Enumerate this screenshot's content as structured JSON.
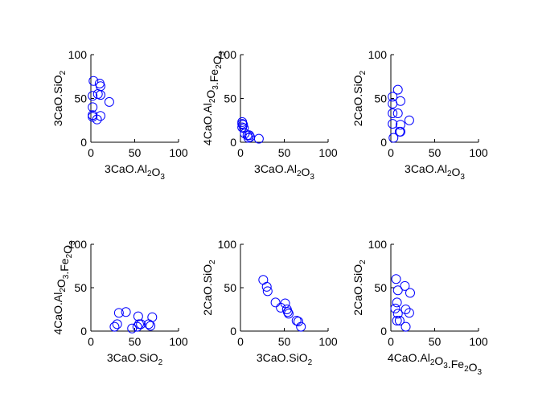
{
  "figure": {
    "background": "#ffffff"
  },
  "chart_data": [
    {
      "type": "scatter",
      "title": "",
      "xlabel": "3CaO.Al2O3",
      "ylabel": "3CaO.SiO2",
      "xlabel_parts": [
        {
          "text": "3CaO.Al"
        },
        {
          "text": "2",
          "sub": true
        },
        {
          "text": "O"
        },
        {
          "text": "3",
          "sub": true
        }
      ],
      "ylabel_parts": [
        {
          "text": "3CaO.SiO"
        },
        {
          "text": "2",
          "sub": true
        }
      ],
      "xlim": [
        0,
        100
      ],
      "ylim": [
        0,
        100
      ],
      "xticks": [
        0,
        50,
        100
      ],
      "yticks": [
        0,
        50,
        100
      ],
      "color": "#0000ff",
      "marker": "circle",
      "x": [
        3,
        10,
        11,
        8,
        11,
        2,
        21,
        2,
        2,
        2,
        7,
        11
      ],
      "y": [
        70,
        67,
        64,
        55,
        54,
        53,
        46,
        40,
        31,
        29,
        26,
        30
      ]
    },
    {
      "type": "scatter",
      "title": "",
      "xlabel": "3CaO.Al2O3",
      "ylabel": "4CaO.Al2O3.Fe2O3",
      "xlabel_parts": [
        {
          "text": "3CaO.Al"
        },
        {
          "text": "2",
          "sub": true
        },
        {
          "text": "O"
        },
        {
          "text": "3",
          "sub": true
        }
      ],
      "ylabel_parts": [
        {
          "text": "4CaO.Al"
        },
        {
          "text": "2",
          "sub": true
        },
        {
          "text": "O"
        },
        {
          "text": "3",
          "sub": true
        },
        {
          "text": ".Fe"
        },
        {
          "text": "2",
          "sub": true
        },
        {
          "text": "O"
        },
        {
          "text": "3",
          "sub": true
        }
      ],
      "xlim": [
        0,
        100
      ],
      "ylim": [
        0,
        100
      ],
      "xticks": [
        0,
        50,
        100
      ],
      "yticks": [
        0,
        50,
        100
      ],
      "color": "#0000ff",
      "marker": "circle",
      "x": [
        2,
        2,
        3,
        2,
        4,
        5,
        10,
        11,
        8,
        9,
        21
      ],
      "y": [
        23,
        21,
        20,
        17,
        16,
        10,
        8,
        6,
        8,
        5,
        4
      ]
    },
    {
      "type": "scatter",
      "title": "",
      "xlabel": "3CaO.Al2O3",
      "ylabel": "2CaO.SiO2",
      "xlabel_parts": [
        {
          "text": "3CaO.Al"
        },
        {
          "text": "2",
          "sub": true
        },
        {
          "text": "O"
        },
        {
          "text": "3",
          "sub": true
        }
      ],
      "ylabel_parts": [
        {
          "text": "2CaO.SiO"
        },
        {
          "text": "2",
          "sub": true
        }
      ],
      "xlim": [
        0,
        100
      ],
      "ylim": [
        0,
        100
      ],
      "xticks": [
        0,
        50,
        100
      ],
      "yticks": [
        0,
        50,
        100
      ],
      "color": "#0000ff",
      "marker": "circle",
      "x": [
        8,
        2,
        11,
        2,
        8,
        2,
        21,
        11,
        11,
        2,
        10,
        3
      ],
      "y": [
        60,
        52,
        47,
        44,
        33,
        33,
        25,
        20,
        12,
        21,
        12,
        5
      ]
    },
    {
      "type": "scatter",
      "title": "",
      "xlabel": "3CaO.SiO2",
      "ylabel": "4CaO.Al2O3.Fe2O3",
      "xlabel_parts": [
        {
          "text": "3CaO.SiO"
        },
        {
          "text": "2",
          "sub": true
        }
      ],
      "ylabel_parts": [
        {
          "text": "4CaO.Al"
        },
        {
          "text": "2",
          "sub": true
        },
        {
          "text": "O"
        },
        {
          "text": "3",
          "sub": true
        },
        {
          "text": ".Fe"
        },
        {
          "text": "2",
          "sub": true
        },
        {
          "text": "O"
        },
        {
          "text": "3",
          "sub": true
        }
      ],
      "xlim": [
        0,
        100
      ],
      "ylim": [
        0,
        100
      ],
      "xticks": [
        0,
        50,
        100
      ],
      "yticks": [
        0,
        50,
        100
      ],
      "color": "#0000ff",
      "marker": "circle",
      "x": [
        27,
        30,
        32,
        40,
        47,
        53,
        54,
        55,
        57,
        66,
        68,
        70
      ],
      "y": [
        5,
        8,
        21,
        22,
        3,
        5,
        17,
        8,
        8,
        8,
        6,
        16
      ]
    },
    {
      "type": "scatter",
      "title": "",
      "xlabel": "3CaO.SiO2",
      "ylabel": "2CaO.SiO2",
      "xlabel_parts": [
        {
          "text": "3CaO.SiO"
        },
        {
          "text": "2",
          "sub": true
        }
      ],
      "ylabel_parts": [
        {
          "text": "2CaO.SiO"
        },
        {
          "text": "2",
          "sub": true
        }
      ],
      "xlim": [
        0,
        100
      ],
      "ylim": [
        0,
        100
      ],
      "xticks": [
        0,
        50,
        100
      ],
      "yticks": [
        0,
        50,
        100
      ],
      "color": "#0000ff",
      "marker": "circle",
      "x": [
        26,
        30,
        31,
        40,
        46,
        51,
        53,
        54,
        55,
        64,
        66,
        69
      ],
      "y": [
        59,
        51,
        46,
        33,
        27,
        32,
        25,
        22,
        20,
        12,
        11,
        5
      ]
    },
    {
      "type": "scatter",
      "title": "",
      "xlabel": "4CaO.Al2O3.Fe2O3",
      "ylabel": "2CaO.SiO2",
      "xlabel_parts": [
        {
          "text": "4CaO.Al"
        },
        {
          "text": "2",
          "sub": true
        },
        {
          "text": "O"
        },
        {
          "text": "3",
          "sub": true
        },
        {
          "text": ".Fe"
        },
        {
          "text": "2",
          "sub": true
        },
        {
          "text": "O"
        },
        {
          "text": "3",
          "sub": true
        }
      ],
      "ylabel_parts": [
        {
          "text": "2CaO.SiO"
        },
        {
          "text": "2",
          "sub": true
        }
      ],
      "xlim": [
        0,
        100
      ],
      "ylim": [
        0,
        100
      ],
      "xticks": [
        0,
        50,
        100
      ],
      "yticks": [
        0,
        50,
        100
      ],
      "color": "#0000ff",
      "marker": "circle",
      "x": [
        6,
        16,
        8,
        22,
        7,
        5,
        17,
        21,
        8,
        10,
        7,
        17
      ],
      "y": [
        60,
        52,
        47,
        44,
        33,
        26,
        25,
        21,
        20,
        12,
        12,
        5
      ]
    }
  ]
}
